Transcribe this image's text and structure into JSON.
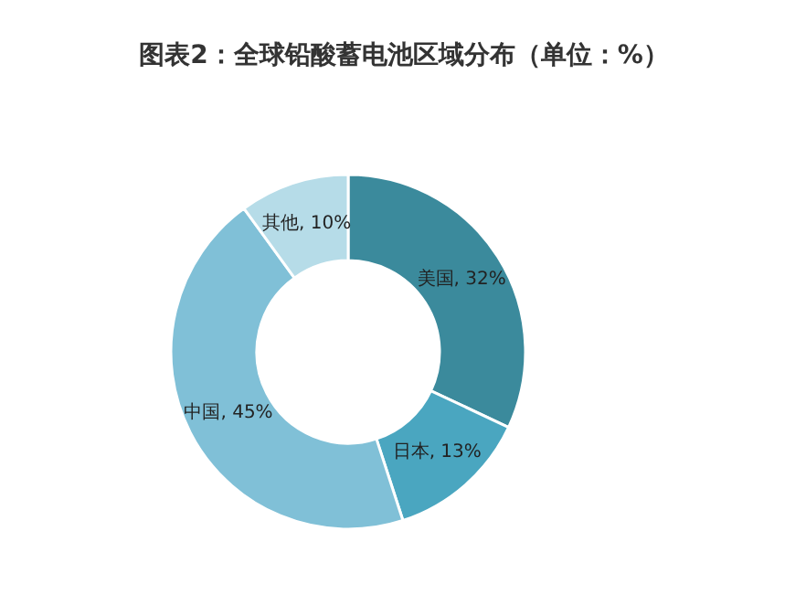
{
  "chart_data": {
    "type": "donut",
    "title": "图表2：全球铅酸蓄电池区域分布（单位：%）",
    "categories": [
      "美国",
      "日本",
      "中国",
      "其他"
    ],
    "values": [
      32,
      13,
      45,
      10
    ],
    "colors": [
      "#3b8a9c",
      "#4aa6c0",
      "#80c0d7",
      "#b6dce8"
    ],
    "value_labels": [
      "32%",
      "13%",
      "45%",
      "10%"
    ]
  }
}
